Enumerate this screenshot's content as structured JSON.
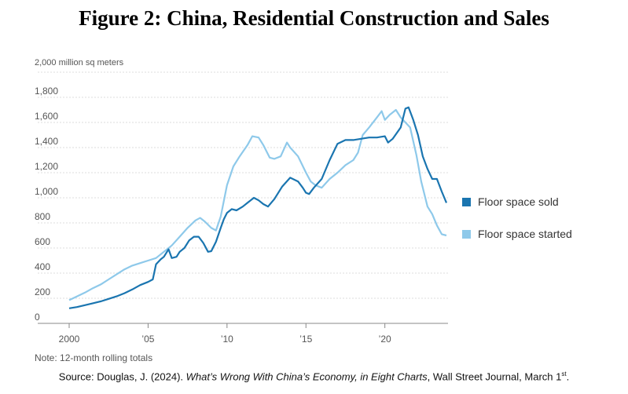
{
  "figure": {
    "title": "Figure 2: China, Residential Construction and Sales",
    "source_prefix": "Source: Douglas, J. (2024). ",
    "source_title": "What’s Wrong With China’s Economy, in Eight Charts",
    "source_suffix": ", Wall Street Journal, March 1",
    "source_superscript": "st",
    "source_end": "."
  },
  "chart_data": {
    "type": "line",
    "title": "",
    "ylabel": "2,000 million sq meters",
    "xlabel": "",
    "note": "Note: 12-month rolling totals",
    "xlim": [
      2000,
      2024
    ],
    "ylim": [
      0,
      2000
    ],
    "x_ticks": [
      {
        "value": 2000,
        "label": "2000"
      },
      {
        "value": 2005,
        "label": "’05"
      },
      {
        "value": 2010,
        "label": "’10"
      },
      {
        "value": 2015,
        "label": "’15"
      },
      {
        "value": 2020,
        "label": "’20"
      }
    ],
    "y_ticks": [
      {
        "value": 0,
        "label": "0"
      },
      {
        "value": 200,
        "label": "200"
      },
      {
        "value": 400,
        "label": "400"
      },
      {
        "value": 600,
        "label": "600"
      },
      {
        "value": 800,
        "label": "800"
      },
      {
        "value": 1000,
        "label": "1,000"
      },
      {
        "value": 1200,
        "label": "1,200"
      },
      {
        "value": 1400,
        "label": "1,400"
      },
      {
        "value": 1600,
        "label": "1,600"
      },
      {
        "value": 1800,
        "label": "1,800"
      }
    ],
    "grid": true,
    "legend_position": "right",
    "series": [
      {
        "name": "Floor space sold",
        "color": "#1a75b0",
        "points": [
          [
            2000.0,
            120
          ],
          [
            2000.5,
            130
          ],
          [
            2001.0,
            145
          ],
          [
            2001.5,
            160
          ],
          [
            2002.0,
            175
          ],
          [
            2002.5,
            195
          ],
          [
            2003.0,
            215
          ],
          [
            2003.5,
            240
          ],
          [
            2004.0,
            270
          ],
          [
            2004.5,
            305
          ],
          [
            2005.0,
            330
          ],
          [
            2005.3,
            350
          ],
          [
            2005.5,
            470
          ],
          [
            2005.8,
            510
          ],
          [
            2006.0,
            530
          ],
          [
            2006.3,
            590
          ],
          [
            2006.5,
            520
          ],
          [
            2006.8,
            530
          ],
          [
            2007.0,
            570
          ],
          [
            2007.3,
            600
          ],
          [
            2007.6,
            660
          ],
          [
            2007.9,
            690
          ],
          [
            2008.2,
            690
          ],
          [
            2008.5,
            640
          ],
          [
            2008.8,
            570
          ],
          [
            2009.0,
            575
          ],
          [
            2009.3,
            650
          ],
          [
            2009.6,
            760
          ],
          [
            2009.8,
            830
          ],
          [
            2010.0,
            880
          ],
          [
            2010.3,
            910
          ],
          [
            2010.6,
            900
          ],
          [
            2011.0,
            930
          ],
          [
            2011.3,
            960
          ],
          [
            2011.7,
            1000
          ],
          [
            2012.0,
            980
          ],
          [
            2012.3,
            950
          ],
          [
            2012.6,
            930
          ],
          [
            2013.0,
            990
          ],
          [
            2013.5,
            1090
          ],
          [
            2014.0,
            1160
          ],
          [
            2014.5,
            1130
          ],
          [
            2014.8,
            1080
          ],
          [
            2015.0,
            1040
          ],
          [
            2015.2,
            1030
          ],
          [
            2015.5,
            1080
          ],
          [
            2016.0,
            1150
          ],
          [
            2016.5,
            1300
          ],
          [
            2017.0,
            1430
          ],
          [
            2017.5,
            1460
          ],
          [
            2018.0,
            1460
          ],
          [
            2018.5,
            1470
          ],
          [
            2019.0,
            1480
          ],
          [
            2019.5,
            1480
          ],
          [
            2020.0,
            1490
          ],
          [
            2020.2,
            1440
          ],
          [
            2020.5,
            1470
          ],
          [
            2021.0,
            1560
          ],
          [
            2021.3,
            1710
          ],
          [
            2021.5,
            1720
          ],
          [
            2021.8,
            1620
          ],
          [
            2022.1,
            1500
          ],
          [
            2022.4,
            1330
          ],
          [
            2022.7,
            1230
          ],
          [
            2023.0,
            1150
          ],
          [
            2023.3,
            1150
          ],
          [
            2023.6,
            1050
          ],
          [
            2023.9,
            960
          ]
        ]
      },
      {
        "name": "Floor space started",
        "color": "#8ec9ea",
        "points": [
          [
            2000.0,
            185
          ],
          [
            2000.5,
            215
          ],
          [
            2001.0,
            245
          ],
          [
            2001.5,
            280
          ],
          [
            2002.0,
            310
          ],
          [
            2002.5,
            350
          ],
          [
            2003.0,
            390
          ],
          [
            2003.5,
            430
          ],
          [
            2004.0,
            460
          ],
          [
            2004.5,
            480
          ],
          [
            2005.0,
            500
          ],
          [
            2005.5,
            520
          ],
          [
            2006.0,
            570
          ],
          [
            2006.5,
            620
          ],
          [
            2007.0,
            690
          ],
          [
            2007.5,
            760
          ],
          [
            2008.0,
            820
          ],
          [
            2008.3,
            840
          ],
          [
            2008.6,
            810
          ],
          [
            2009.0,
            760
          ],
          [
            2009.3,
            740
          ],
          [
            2009.6,
            850
          ],
          [
            2010.0,
            1100
          ],
          [
            2010.4,
            1250
          ],
          [
            2010.8,
            1330
          ],
          [
            2011.3,
            1420
          ],
          [
            2011.6,
            1490
          ],
          [
            2012.0,
            1480
          ],
          [
            2012.3,
            1420
          ],
          [
            2012.7,
            1320
          ],
          [
            2013.0,
            1310
          ],
          [
            2013.4,
            1330
          ],
          [
            2013.8,
            1440
          ],
          [
            2014.0,
            1400
          ],
          [
            2014.5,
            1330
          ],
          [
            2015.0,
            1200
          ],
          [
            2015.3,
            1130
          ],
          [
            2015.6,
            1100
          ],
          [
            2016.0,
            1080
          ],
          [
            2016.5,
            1150
          ],
          [
            2017.0,
            1200
          ],
          [
            2017.5,
            1260
          ],
          [
            2018.0,
            1300
          ],
          [
            2018.3,
            1360
          ],
          [
            2018.6,
            1500
          ],
          [
            2019.0,
            1560
          ],
          [
            2019.5,
            1640
          ],
          [
            2019.8,
            1690
          ],
          [
            2020.0,
            1620
          ],
          [
            2020.3,
            1660
          ],
          [
            2020.7,
            1700
          ],
          [
            2021.0,
            1640
          ],
          [
            2021.3,
            1600
          ],
          [
            2021.6,
            1560
          ],
          [
            2022.0,
            1340
          ],
          [
            2022.3,
            1130
          ],
          [
            2022.7,
            930
          ],
          [
            2023.0,
            870
          ],
          [
            2023.3,
            780
          ],
          [
            2023.6,
            710
          ],
          [
            2023.9,
            700
          ]
        ]
      }
    ]
  }
}
